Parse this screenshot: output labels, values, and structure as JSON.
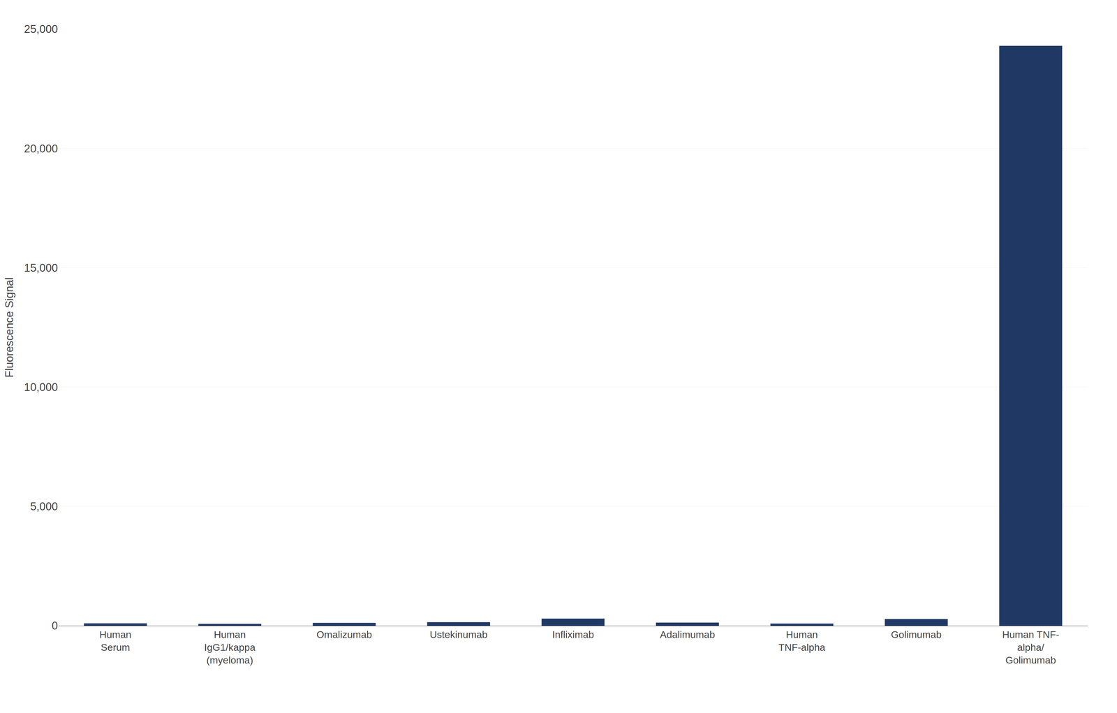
{
  "chart_data": {
    "type": "bar",
    "categories": [
      "Human\nSerum",
      "Human\nIgG1/kappa\n(myeloma)",
      "Omalizumab",
      "Ustekinumab",
      "Infliximab",
      "Adalimumab",
      "Human\nTNF-alpha",
      "Golimumab",
      "Human TNF-\nalpha/\nGolimumab"
    ],
    "values": [
      100,
      80,
      120,
      150,
      300,
      130,
      90,
      280,
      24300
    ],
    "color": "#1f3864",
    "ylabel": "Fluorescence Signal",
    "ylim": [
      0,
      25000
    ],
    "yticks": [
      0,
      {
        "value": 5000,
        "label": "5,000"
      },
      {
        "value": 10000,
        "label": "10,000"
      },
      {
        "value": 15000,
        "label": "15,000"
      },
      {
        "value": 20000,
        "label": "20,000"
      },
      {
        "value": 25000,
        "label": "25,000"
      }
    ],
    "grid": true
  }
}
